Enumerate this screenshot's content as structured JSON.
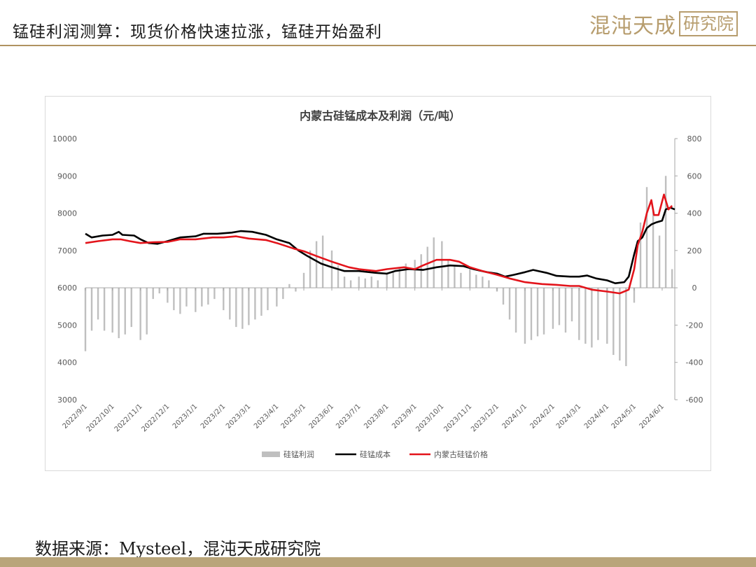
{
  "header": {
    "title": "锰硅利润测算：现货价格快速拉涨，锰硅开始盈利",
    "brand": {
      "main": "混沌天成",
      "boxed": "研究院"
    }
  },
  "source_note": "数据来源：Mysteel，混沌天成研究院",
  "colors": {
    "profit": "#bfbfbf",
    "cost": "#000000",
    "price": "#e3141b",
    "accent": "#b09260"
  },
  "chart_data": {
    "type": "line",
    "title": "内蒙古硅锰成本及利润（元/吨）",
    "y_left": {
      "min": 3000,
      "max": 10000,
      "ticks": [
        3000,
        4000,
        5000,
        6000,
        7000,
        8000,
        9000,
        10000
      ]
    },
    "y_right": {
      "min": -600,
      "max": 800,
      "ticks": [
        -600,
        -400,
        -200,
        0,
        200,
        400,
        600,
        800
      ]
    },
    "x_range": [
      "2022/9/1",
      "2024/6/15"
    ],
    "x_ticks": [
      "2022/9/1",
      "2022/10/1",
      "2022/11/1",
      "2022/12/1",
      "2023/1/1",
      "2023/2/1",
      "2023/3/1",
      "2023/4/1",
      "2023/5/1",
      "2023/6/1",
      "2023/7/1",
      "2023/8/1",
      "2023/9/1",
      "2023/10/1",
      "2023/11/1",
      "2023/12/1",
      "2024/1/1",
      "2024/2/1",
      "2024/3/1",
      "2024/4/1",
      "2024/5/1",
      "2024/6/1"
    ],
    "legend": {
      "position": "bottom",
      "entries": [
        "硅锰利润",
        "硅锰成本",
        "内蒙古硅锰价格"
      ]
    },
    "series": [
      {
        "name": "硅锰成本",
        "axis": "left",
        "style": "line",
        "points": [
          [
            "2022/9/1",
            7450
          ],
          [
            "2022/9/8",
            7350
          ],
          [
            "2022/9/20",
            7400
          ],
          [
            "2022/10/1",
            7420
          ],
          [
            "2022/10/8",
            7500
          ],
          [
            "2022/10/12",
            7420
          ],
          [
            "2022/10/25",
            7400
          ],
          [
            "2022/11/1",
            7300
          ],
          [
            "2022/11/10",
            7200
          ],
          [
            "2022/11/20",
            7180
          ],
          [
            "2022/12/1",
            7250
          ],
          [
            "2022/12/15",
            7350
          ],
          [
            "2023/1/1",
            7380
          ],
          [
            "2023/1/10",
            7450
          ],
          [
            "2023/1/25",
            7450
          ],
          [
            "2023/2/10",
            7480
          ],
          [
            "2023/2/20",
            7520
          ],
          [
            "2023/3/5",
            7500
          ],
          [
            "2023/3/20",
            7420
          ],
          [
            "2023/4/1",
            7300
          ],
          [
            "2023/4/15",
            7200
          ],
          [
            "2023/4/25",
            7000
          ],
          [
            "2023/5/5",
            6850
          ],
          [
            "2023/5/20",
            6650
          ],
          [
            "2023/6/1",
            6550
          ],
          [
            "2023/6/15",
            6450
          ],
          [
            "2023/7/1",
            6450
          ],
          [
            "2023/7/20",
            6400
          ],
          [
            "2023/8/1",
            6380
          ],
          [
            "2023/8/10",
            6450
          ],
          [
            "2023/8/25",
            6500
          ],
          [
            "2023/9/10",
            6480
          ],
          [
            "2023/9/25",
            6550
          ],
          [
            "2023/10/10",
            6600
          ],
          [
            "2023/10/25",
            6580
          ],
          [
            "2023/11/5",
            6500
          ],
          [
            "2023/11/20",
            6420
          ],
          [
            "2023/12/1",
            6380
          ],
          [
            "2023/12/10",
            6300
          ],
          [
            "2023/12/20",
            6350
          ],
          [
            "2024/1/1",
            6420
          ],
          [
            "2024/1/10",
            6480
          ],
          [
            "2024/1/25",
            6400
          ],
          [
            "2024/2/5",
            6320
          ],
          [
            "2024/2/20",
            6300
          ],
          [
            "2024/3/1",
            6300
          ],
          [
            "2024/3/10",
            6330
          ],
          [
            "2024/3/20",
            6250
          ],
          [
            "2024/4/1",
            6200
          ],
          [
            "2024/4/10",
            6120
          ],
          [
            "2024/4/20",
            6150
          ],
          [
            "2024/4/25",
            6300
          ],
          [
            "2024/5/1",
            6900
          ],
          [
            "2024/5/5",
            7250
          ],
          [
            "2024/5/10",
            7350
          ],
          [
            "2024/5/15",
            7600
          ],
          [
            "2024/5/20",
            7700
          ],
          [
            "2024/5/25",
            7750
          ],
          [
            "2024/6/1",
            7800
          ],
          [
            "2024/6/5",
            8100
          ],
          [
            "2024/6/10",
            8150
          ],
          [
            "2024/6/15",
            8100
          ]
        ]
      },
      {
        "name": "内蒙古硅锰价格",
        "axis": "left",
        "style": "line",
        "points": [
          [
            "2022/9/1",
            7200
          ],
          [
            "2022/9/15",
            7250
          ],
          [
            "2022/10/1",
            7300
          ],
          [
            "2022/10/10",
            7300
          ],
          [
            "2022/10/20",
            7250
          ],
          [
            "2022/11/1",
            7200
          ],
          [
            "2022/11/15",
            7220
          ],
          [
            "2022/12/1",
            7230
          ],
          [
            "2022/12/15",
            7300
          ],
          [
            "2023/1/1",
            7300
          ],
          [
            "2023/1/20",
            7350
          ],
          [
            "2023/2/1",
            7350
          ],
          [
            "2023/2/15",
            7380
          ],
          [
            "2023/3/1",
            7320
          ],
          [
            "2023/3/20",
            7280
          ],
          [
            "2023/4/1",
            7200
          ],
          [
            "2023/4/20",
            7050
          ],
          [
            "2023/5/1",
            6980
          ],
          [
            "2023/5/15",
            6850
          ],
          [
            "2023/6/1",
            6700
          ],
          [
            "2023/6/20",
            6550
          ],
          [
            "2023/7/1",
            6500
          ],
          [
            "2023/7/20",
            6450
          ],
          [
            "2023/8/1",
            6500
          ],
          [
            "2023/8/20",
            6550
          ],
          [
            "2023/9/1",
            6500
          ],
          [
            "2023/9/10",
            6600
          ],
          [
            "2023/9/25",
            6750
          ],
          [
            "2023/10/10",
            6750
          ],
          [
            "2023/10/20",
            6700
          ],
          [
            "2023/11/1",
            6550
          ],
          [
            "2023/11/15",
            6450
          ],
          [
            "2023/12/1",
            6350
          ],
          [
            "2023/12/15",
            6250
          ],
          [
            "2024/1/1",
            6150
          ],
          [
            "2024/1/20",
            6100
          ],
          [
            "2024/2/5",
            6080
          ],
          [
            "2024/2/20",
            6050
          ],
          [
            "2024/3/1",
            6050
          ],
          [
            "2024/3/15",
            5950
          ],
          [
            "2024/4/1",
            5900
          ],
          [
            "2024/4/15",
            5850
          ],
          [
            "2024/4/25",
            5950
          ],
          [
            "2024/5/1",
            6500
          ],
          [
            "2024/5/5",
            7150
          ],
          [
            "2024/5/10",
            7500
          ],
          [
            "2024/5/15",
            8000
          ],
          [
            "2024/5/20",
            8350
          ],
          [
            "2024/5/23",
            7950
          ],
          [
            "2024/5/28",
            7950
          ],
          [
            "2024/6/3",
            8500
          ],
          [
            "2024/6/8",
            8100
          ],
          [
            "2024/6/12",
            8200
          ]
        ]
      },
      {
        "name": "硅锰利润",
        "axis": "right",
        "style": "bar",
        "points": [
          [
            "2022/9/1",
            -340
          ],
          [
            "2022/9/8",
            -230
          ],
          [
            "2022/9/15",
            -170
          ],
          [
            "2022/9/22",
            -230
          ],
          [
            "2022/10/1",
            -240
          ],
          [
            "2022/10/8",
            -270
          ],
          [
            "2022/10/15",
            -250
          ],
          [
            "2022/10/22",
            -210
          ],
          [
            "2022/11/1",
            -280
          ],
          [
            "2022/11/8",
            -250
          ],
          [
            "2022/11/15",
            -60
          ],
          [
            "2022/11/22",
            -30
          ],
          [
            "2022/12/1",
            -80
          ],
          [
            "2022/12/8",
            -120
          ],
          [
            "2022/12/15",
            -140
          ],
          [
            "2022/12/22",
            -100
          ],
          [
            "2023/1/1",
            -130
          ],
          [
            "2023/1/8",
            -100
          ],
          [
            "2023/1/15",
            -90
          ],
          [
            "2023/1/22",
            -60
          ],
          [
            "2023/2/1",
            -120
          ],
          [
            "2023/2/8",
            -170
          ],
          [
            "2023/2/15",
            -210
          ],
          [
            "2023/2/22",
            -220
          ],
          [
            "2023/3/1",
            -200
          ],
          [
            "2023/3/8",
            -170
          ],
          [
            "2023/3/15",
            -150
          ],
          [
            "2023/3/22",
            -120
          ],
          [
            "2023/4/1",
            -100
          ],
          [
            "2023/4/8",
            -60
          ],
          [
            "2023/4/15",
            20
          ],
          [
            "2023/4/22",
            -20
          ],
          [
            "2023/5/1",
            80
          ],
          [
            "2023/5/8",
            200
          ],
          [
            "2023/5/15",
            250
          ],
          [
            "2023/5/22",
            280
          ],
          [
            "2023/6/1",
            200
          ],
          [
            "2023/6/8",
            120
          ],
          [
            "2023/6/15",
            60
          ],
          [
            "2023/6/22",
            40
          ],
          [
            "2023/7/1",
            60
          ],
          [
            "2023/7/8",
            50
          ],
          [
            "2023/7/15",
            60
          ],
          [
            "2023/7/22",
            40
          ],
          [
            "2023/8/1",
            80
          ],
          [
            "2023/8/8",
            90
          ],
          [
            "2023/8/15",
            110
          ],
          [
            "2023/8/22",
            130
          ],
          [
            "2023/9/1",
            150
          ],
          [
            "2023/9/8",
            180
          ],
          [
            "2023/9/15",
            220
          ],
          [
            "2023/9/22",
            270
          ],
          [
            "2023/10/1",
            250
          ],
          [
            "2023/10/8",
            150
          ],
          [
            "2023/10/15",
            120
          ],
          [
            "2023/10/22",
            80
          ],
          [
            "2023/11/1",
            100
          ],
          [
            "2023/11/8",
            70
          ],
          [
            "2023/11/15",
            60
          ],
          [
            "2023/11/22",
            40
          ],
          [
            "2023/12/1",
            -20
          ],
          [
            "2023/12/8",
            -90
          ],
          [
            "2023/12/15",
            -170
          ],
          [
            "2023/12/22",
            -240
          ],
          [
            "2024/1/1",
            -300
          ],
          [
            "2024/1/8",
            -280
          ],
          [
            "2024/1/15",
            -260
          ],
          [
            "2024/1/22",
            -250
          ],
          [
            "2024/2/1",
            -220
          ],
          [
            "2024/2/8",
            -200
          ],
          [
            "2024/2/15",
            -240
          ],
          [
            "2024/2/22",
            -180
          ],
          [
            "2024/3/1",
            -280
          ],
          [
            "2024/3/8",
            -300
          ],
          [
            "2024/3/15",
            -320
          ],
          [
            "2024/3/22",
            -280
          ],
          [
            "2024/4/1",
            -300
          ],
          [
            "2024/4/8",
            -360
          ],
          [
            "2024/4/15",
            -390
          ],
          [
            "2024/4/22",
            -420
          ],
          [
            "2024/5/1",
            -80
          ],
          [
            "2024/5/8",
            350
          ],
          [
            "2024/5/15",
            540
          ],
          [
            "2024/5/22",
            420
          ],
          [
            "2024/5/29",
            280
          ],
          [
            "2024/6/5",
            600
          ],
          [
            "2024/6/12",
            100
          ]
        ]
      }
    ]
  }
}
